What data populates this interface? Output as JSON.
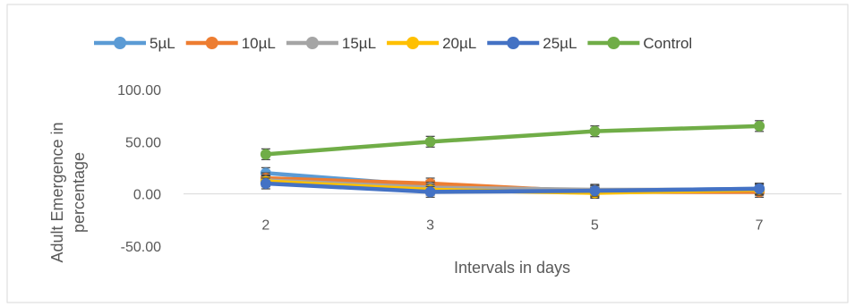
{
  "chart_data": {
    "type": "line",
    "title": "",
    "xlabel": "Intervals in days",
    "ylabel": "Adult Emergence in percentage",
    "categories": [
      "2",
      "3",
      "5",
      "7"
    ],
    "ylim": [
      -50,
      100
    ],
    "yticks": [
      -50,
      0,
      50,
      100
    ],
    "ytick_labels": [
      "-50.00",
      "0.00",
      "50.00",
      "100.00"
    ],
    "grid": false,
    "legend_position": "top",
    "error_bars": true,
    "series": [
      {
        "name": "5µL",
        "color": "#5B9BD5",
        "values": [
          20,
          8,
          3,
          5
        ]
      },
      {
        "name": "10µL",
        "color": "#ED7D31",
        "values": [
          15,
          10,
          2,
          2
        ]
      },
      {
        "name": "15µL",
        "color": "#A5A5A5",
        "values": [
          13,
          6,
          4,
          4
        ]
      },
      {
        "name": "20µL",
        "color": "#FFC000",
        "values": [
          12,
          4,
          1,
          4
        ]
      },
      {
        "name": "25µL",
        "color": "#4472C4",
        "values": [
          10,
          2,
          3,
          5
        ]
      },
      {
        "name": "Control",
        "color": "#70AD47",
        "values": [
          38,
          50,
          60,
          65
        ]
      }
    ]
  }
}
